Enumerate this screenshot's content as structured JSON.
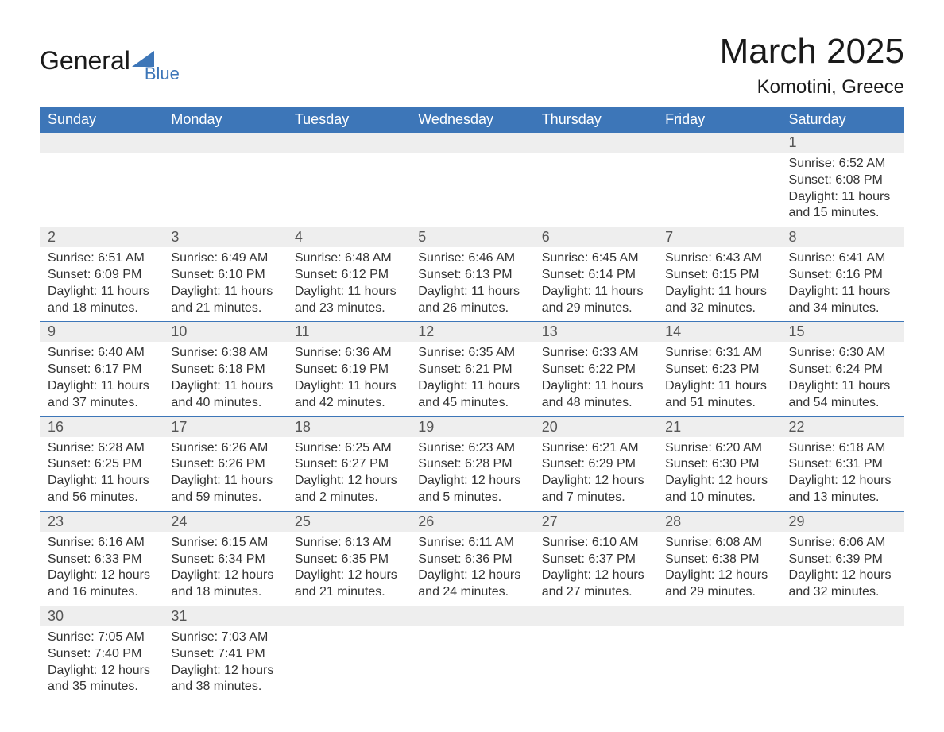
{
  "brand": {
    "name": "General",
    "sub": "Blue"
  },
  "title": {
    "month": "March 2025",
    "location": "Komotini, Greece"
  },
  "colors": {
    "header_bg": "#3d76b8",
    "header_text": "#ffffff",
    "daynum_bg": "#eeeeee",
    "daynum_text": "#555555",
    "body_text": "#333333",
    "rule": "#3d76b8",
    "background": "#ffffff"
  },
  "typography": {
    "title_fontsize": 44,
    "location_fontsize": 24,
    "header_fontsize": 18,
    "daynum_fontsize": 18,
    "cell_fontsize": 16,
    "font_family": "Arial"
  },
  "calendar": {
    "type": "table",
    "columns": [
      "Sunday",
      "Monday",
      "Tuesday",
      "Wednesday",
      "Thursday",
      "Friday",
      "Saturday"
    ],
    "weeks": [
      [
        null,
        null,
        null,
        null,
        null,
        null,
        {
          "n": "1",
          "sr": "Sunrise: 6:52 AM",
          "ss": "Sunset: 6:08 PM",
          "d1": "Daylight: 11 hours",
          "d2": "and 15 minutes."
        }
      ],
      [
        {
          "n": "2",
          "sr": "Sunrise: 6:51 AM",
          "ss": "Sunset: 6:09 PM",
          "d1": "Daylight: 11 hours",
          "d2": "and 18 minutes."
        },
        {
          "n": "3",
          "sr": "Sunrise: 6:49 AM",
          "ss": "Sunset: 6:10 PM",
          "d1": "Daylight: 11 hours",
          "d2": "and 21 minutes."
        },
        {
          "n": "4",
          "sr": "Sunrise: 6:48 AM",
          "ss": "Sunset: 6:12 PM",
          "d1": "Daylight: 11 hours",
          "d2": "and 23 minutes."
        },
        {
          "n": "5",
          "sr": "Sunrise: 6:46 AM",
          "ss": "Sunset: 6:13 PM",
          "d1": "Daylight: 11 hours",
          "d2": "and 26 minutes."
        },
        {
          "n": "6",
          "sr": "Sunrise: 6:45 AM",
          "ss": "Sunset: 6:14 PM",
          "d1": "Daylight: 11 hours",
          "d2": "and 29 minutes."
        },
        {
          "n": "7",
          "sr": "Sunrise: 6:43 AM",
          "ss": "Sunset: 6:15 PM",
          "d1": "Daylight: 11 hours",
          "d2": "and 32 minutes."
        },
        {
          "n": "8",
          "sr": "Sunrise: 6:41 AM",
          "ss": "Sunset: 6:16 PM",
          "d1": "Daylight: 11 hours",
          "d2": "and 34 minutes."
        }
      ],
      [
        {
          "n": "9",
          "sr": "Sunrise: 6:40 AM",
          "ss": "Sunset: 6:17 PM",
          "d1": "Daylight: 11 hours",
          "d2": "and 37 minutes."
        },
        {
          "n": "10",
          "sr": "Sunrise: 6:38 AM",
          "ss": "Sunset: 6:18 PM",
          "d1": "Daylight: 11 hours",
          "d2": "and 40 minutes."
        },
        {
          "n": "11",
          "sr": "Sunrise: 6:36 AM",
          "ss": "Sunset: 6:19 PM",
          "d1": "Daylight: 11 hours",
          "d2": "and 42 minutes."
        },
        {
          "n": "12",
          "sr": "Sunrise: 6:35 AM",
          "ss": "Sunset: 6:21 PM",
          "d1": "Daylight: 11 hours",
          "d2": "and 45 minutes."
        },
        {
          "n": "13",
          "sr": "Sunrise: 6:33 AM",
          "ss": "Sunset: 6:22 PM",
          "d1": "Daylight: 11 hours",
          "d2": "and 48 minutes."
        },
        {
          "n": "14",
          "sr": "Sunrise: 6:31 AM",
          "ss": "Sunset: 6:23 PM",
          "d1": "Daylight: 11 hours",
          "d2": "and 51 minutes."
        },
        {
          "n": "15",
          "sr": "Sunrise: 6:30 AM",
          "ss": "Sunset: 6:24 PM",
          "d1": "Daylight: 11 hours",
          "d2": "and 54 minutes."
        }
      ],
      [
        {
          "n": "16",
          "sr": "Sunrise: 6:28 AM",
          "ss": "Sunset: 6:25 PM",
          "d1": "Daylight: 11 hours",
          "d2": "and 56 minutes."
        },
        {
          "n": "17",
          "sr": "Sunrise: 6:26 AM",
          "ss": "Sunset: 6:26 PM",
          "d1": "Daylight: 11 hours",
          "d2": "and 59 minutes."
        },
        {
          "n": "18",
          "sr": "Sunrise: 6:25 AM",
          "ss": "Sunset: 6:27 PM",
          "d1": "Daylight: 12 hours",
          "d2": "and 2 minutes."
        },
        {
          "n": "19",
          "sr": "Sunrise: 6:23 AM",
          "ss": "Sunset: 6:28 PM",
          "d1": "Daylight: 12 hours",
          "d2": "and 5 minutes."
        },
        {
          "n": "20",
          "sr": "Sunrise: 6:21 AM",
          "ss": "Sunset: 6:29 PM",
          "d1": "Daylight: 12 hours",
          "d2": "and 7 minutes."
        },
        {
          "n": "21",
          "sr": "Sunrise: 6:20 AM",
          "ss": "Sunset: 6:30 PM",
          "d1": "Daylight: 12 hours",
          "d2": "and 10 minutes."
        },
        {
          "n": "22",
          "sr": "Sunrise: 6:18 AM",
          "ss": "Sunset: 6:31 PM",
          "d1": "Daylight: 12 hours",
          "d2": "and 13 minutes."
        }
      ],
      [
        {
          "n": "23",
          "sr": "Sunrise: 6:16 AM",
          "ss": "Sunset: 6:33 PM",
          "d1": "Daylight: 12 hours",
          "d2": "and 16 minutes."
        },
        {
          "n": "24",
          "sr": "Sunrise: 6:15 AM",
          "ss": "Sunset: 6:34 PM",
          "d1": "Daylight: 12 hours",
          "d2": "and 18 minutes."
        },
        {
          "n": "25",
          "sr": "Sunrise: 6:13 AM",
          "ss": "Sunset: 6:35 PM",
          "d1": "Daylight: 12 hours",
          "d2": "and 21 minutes."
        },
        {
          "n": "26",
          "sr": "Sunrise: 6:11 AM",
          "ss": "Sunset: 6:36 PM",
          "d1": "Daylight: 12 hours",
          "d2": "and 24 minutes."
        },
        {
          "n": "27",
          "sr": "Sunrise: 6:10 AM",
          "ss": "Sunset: 6:37 PM",
          "d1": "Daylight: 12 hours",
          "d2": "and 27 minutes."
        },
        {
          "n": "28",
          "sr": "Sunrise: 6:08 AM",
          "ss": "Sunset: 6:38 PM",
          "d1": "Daylight: 12 hours",
          "d2": "and 29 minutes."
        },
        {
          "n": "29",
          "sr": "Sunrise: 6:06 AM",
          "ss": "Sunset: 6:39 PM",
          "d1": "Daylight: 12 hours",
          "d2": "and 32 minutes."
        }
      ],
      [
        {
          "n": "30",
          "sr": "Sunrise: 7:05 AM",
          "ss": "Sunset: 7:40 PM",
          "d1": "Daylight: 12 hours",
          "d2": "and 35 minutes."
        },
        {
          "n": "31",
          "sr": "Sunrise: 7:03 AM",
          "ss": "Sunset: 7:41 PM",
          "d1": "Daylight: 12 hours",
          "d2": "and 38 minutes."
        },
        null,
        null,
        null,
        null,
        null
      ]
    ]
  }
}
